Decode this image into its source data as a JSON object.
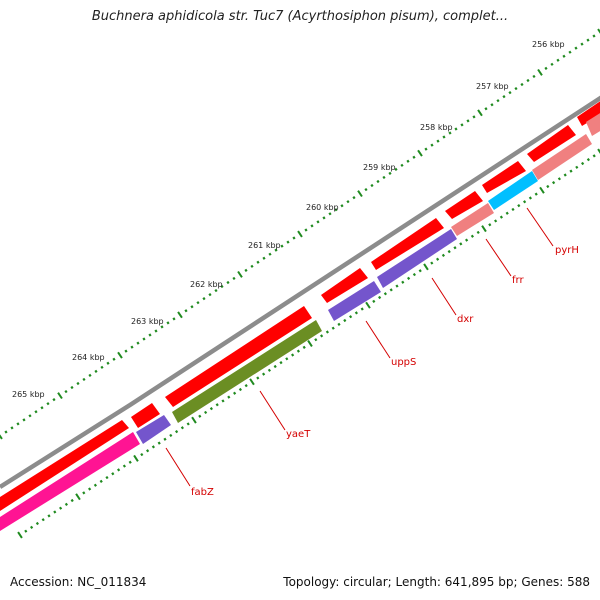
{
  "title": "Buchnera aphidicola str. Tuc7 (Acyrthosiphon pisum), complet...",
  "footer": {
    "accession": "Accession: NC_011834",
    "summary": "Topology: circular; Length: 641,895 bp; Genes: 588"
  },
  "colors": {
    "backbone": "#8c8c8c",
    "forward_gene": "#ff0000",
    "tick": "#1f8a1f",
    "label": "#d40000",
    "fabZ": "#7455cc",
    "yaeT": "#6b8e23",
    "uppS": "#7455cc",
    "dxr": "#7455cc",
    "frr": "#f08080",
    "pyrH": "#00bfff",
    "magenta": "#ff1493"
  },
  "kbp_labels": [
    "256 kbp",
    "257 kbp",
    "258 kbp",
    "259 kbp",
    "260 kbp",
    "261 kbp",
    "262 kbp",
    "263 kbp",
    "264 kbp",
    "265 kbp"
  ],
  "gene_labels": [
    "fabZ",
    "yaeT",
    "uppS",
    "dxr",
    "frr",
    "pyrH"
  ]
}
